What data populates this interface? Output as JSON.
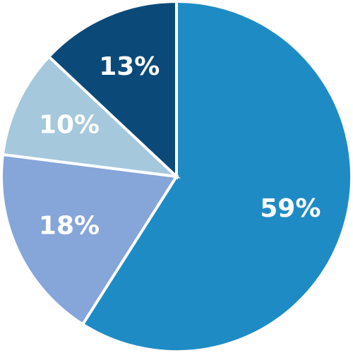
{
  "chart_data": {
    "type": "pie",
    "title": "",
    "start_angle_deg": 0,
    "direction": "clockwise",
    "legend": "none",
    "slices": [
      {
        "value": 59,
        "label": "59%",
        "color": "#1f8bc5",
        "label_color": "#ffffff"
      },
      {
        "value": 18,
        "label": "18%",
        "color": "#86a5d9",
        "label_color": "#ffffff"
      },
      {
        "value": 10,
        "label": "10%",
        "color": "#a5c8dc",
        "label_color": "#ffffff"
      },
      {
        "value": 13,
        "label": "13%",
        "color": "#0b4a78",
        "label_color": "#ffffff"
      }
    ]
  }
}
